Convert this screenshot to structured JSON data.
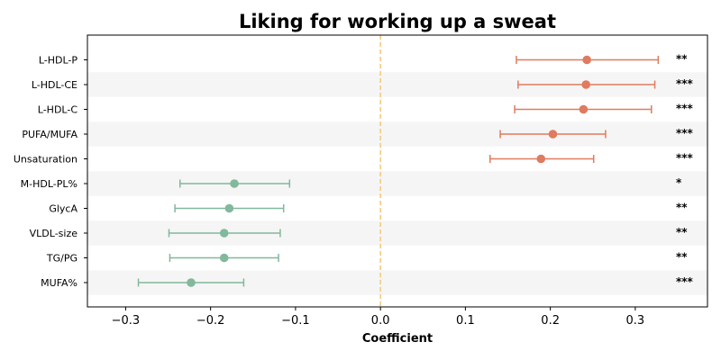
{
  "chart_data": {
    "type": "forest",
    "title": "Liking for working up a sweat",
    "xlabel": "Coefficient",
    "ylabel": "",
    "xlim": [
      -0.345,
      0.385
    ],
    "xticks": [
      -0.3,
      -0.2,
      -0.1,
      0.0,
      0.1,
      0.2,
      0.3
    ],
    "xtick_labels": [
      "−0.3",
      "−0.2",
      "−0.1",
      "0.0",
      "0.1",
      "0.2",
      "0.3"
    ],
    "reference_line": 0.0,
    "alternating_row_shading": true,
    "colors": {
      "positive": "#e07b5f",
      "negative": "#82b89c",
      "reference_line": "#f4c77a",
      "row_shade": "#f5f5f5"
    },
    "rows": [
      {
        "label": "L-HDL-P",
        "estimate": 0.243,
        "ci_low": 0.16,
        "ci_high": 0.327,
        "significance": "**"
      },
      {
        "label": "L-HDL-CE",
        "estimate": 0.242,
        "ci_low": 0.162,
        "ci_high": 0.323,
        "significance": "***"
      },
      {
        "label": "L-HDL-C",
        "estimate": 0.239,
        "ci_low": 0.158,
        "ci_high": 0.319,
        "significance": "***"
      },
      {
        "label": "PUFA/MUFA",
        "estimate": 0.203,
        "ci_low": 0.141,
        "ci_high": 0.265,
        "significance": "***"
      },
      {
        "label": "Unsaturation",
        "estimate": 0.189,
        "ci_low": 0.129,
        "ci_high": 0.251,
        "significance": "***"
      },
      {
        "label": "M-HDL-PL%",
        "estimate": -0.172,
        "ci_low": -0.236,
        "ci_high": -0.107,
        "significance": "*"
      },
      {
        "label": "GlycA",
        "estimate": -0.178,
        "ci_low": -0.242,
        "ci_high": -0.114,
        "significance": "**"
      },
      {
        "label": "VLDL-size",
        "estimate": -0.184,
        "ci_low": -0.249,
        "ci_high": -0.118,
        "significance": "**"
      },
      {
        "label": "TG/PG",
        "estimate": -0.184,
        "ci_low": -0.248,
        "ci_high": -0.12,
        "significance": "**"
      },
      {
        "label": "MUFA%",
        "estimate": -0.223,
        "ci_low": -0.285,
        "ci_high": -0.161,
        "significance": "***"
      }
    ]
  }
}
